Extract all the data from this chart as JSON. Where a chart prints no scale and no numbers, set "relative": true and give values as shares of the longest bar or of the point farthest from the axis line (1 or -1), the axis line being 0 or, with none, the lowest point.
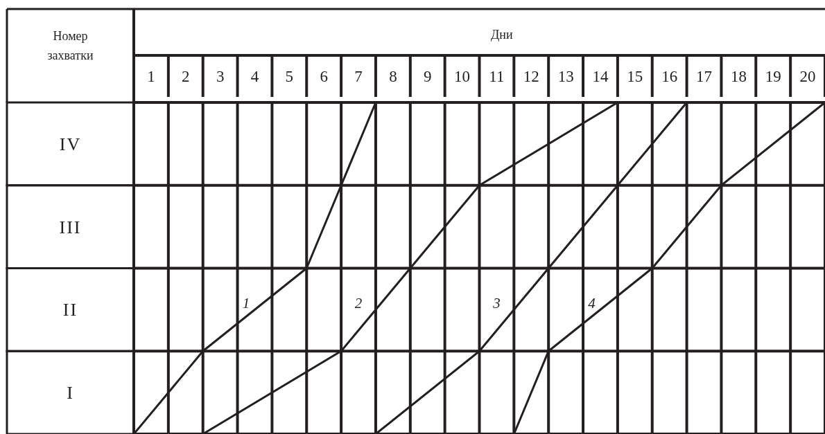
{
  "chart_data": {
    "type": "line",
    "xlabel": "Дни",
    "ylabel": "Номер захватки",
    "xlim": [
      0,
      20
    ],
    "xticks": [
      {
        "value": 0,
        "label": null
      },
      {
        "value": 0.5,
        "label": "1"
      },
      {
        "value": 1,
        "label": null
      },
      {
        "value": 1.5,
        "label": "2"
      },
      {
        "value": 2,
        "label": null
      },
      {
        "value": 2.5,
        "label": "3"
      },
      {
        "value": 3,
        "label": null
      },
      {
        "value": 3.5,
        "label": "4"
      },
      {
        "value": 4,
        "label": null
      },
      {
        "value": 4.5,
        "label": "5"
      },
      {
        "value": 5,
        "label": null
      },
      {
        "value": 5.5,
        "label": "6"
      },
      {
        "value": 6,
        "label": null
      },
      {
        "value": 6.5,
        "label": "7"
      },
      {
        "value": 7,
        "label": null
      },
      {
        "value": 7.5,
        "label": "8"
      },
      {
        "value": 8,
        "label": null
      },
      {
        "value": 8.5,
        "label": "9"
      },
      {
        "value": 9,
        "label": null
      },
      {
        "value": 9.5,
        "label": "10"
      },
      {
        "value": 10,
        "label": null
      },
      {
        "value": 10.5,
        "label": "11"
      },
      {
        "value": 11,
        "label": null
      },
      {
        "value": 11.5,
        "label": "12"
      },
      {
        "value": 12,
        "label": null
      },
      {
        "value": 12.5,
        "label": "13"
      },
      {
        "value": 13,
        "label": null
      },
      {
        "value": 13.5,
        "label": "14"
      },
      {
        "value": 14,
        "label": null
      },
      {
        "value": 14.5,
        "label": "15"
      },
      {
        "value": 15,
        "label": null
      },
      {
        "value": 15.5,
        "label": "16"
      },
      {
        "value": 16,
        "label": null
      },
      {
        "value": 16.5,
        "label": "17"
      },
      {
        "value": 17,
        "label": null
      },
      {
        "value": 17.5,
        "label": "18"
      },
      {
        "value": 18,
        "label": null
      },
      {
        "value": 18.5,
        "label": "19"
      },
      {
        "value": 19,
        "label": null
      },
      {
        "value": 19.5,
        "label": "20"
      },
      {
        "value": 20,
        "label": null
      }
    ],
    "relative": true,
    "y_categories": [
      "IV",
      "III",
      "II",
      "I"
    ],
    "grid": true,
    "marker": "none",
    "line_style": "solid",
    "series": [
      {
        "name": "1",
        "color": "#231f20",
        "x": [
          0,
          2,
          5,
          6,
          7
        ],
        "values": [
          0,
          0.25,
          0.5,
          0.75,
          1
        ]
      },
      {
        "name": "2",
        "color": "#231f20",
        "x": [
          2,
          6,
          8,
          10,
          14
        ],
        "values": [
          0,
          0.25,
          0.5,
          0.75,
          1
        ]
      },
      {
        "name": "3",
        "color": "#231f20",
        "x": [
          7,
          10,
          12,
          14,
          16
        ],
        "values": [
          0,
          0.25,
          0.5,
          0.75,
          1
        ]
      },
      {
        "name": "4",
        "color": "#231f20",
        "x": [
          11,
          12,
          15,
          17,
          20
        ],
        "values": [
          0,
          0.25,
          0.5,
          0.75,
          1
        ]
      }
    ]
  }
}
